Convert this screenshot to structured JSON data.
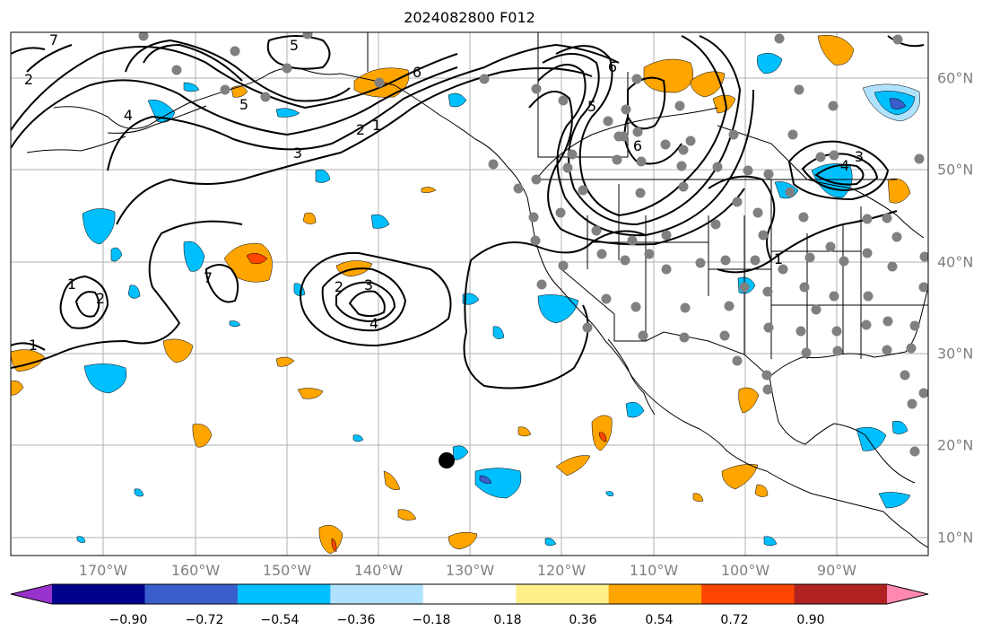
{
  "title": "2024082800 F012",
  "longitude_labels": [
    "170°W",
    "160°W",
    "150°W",
    "140°W",
    "130°W",
    "120°W",
    "110°W",
    "100°W",
    "90°W"
  ],
  "latitude_labels": [
    "60°N",
    "50°N",
    "40°N",
    "30°N",
    "20°N",
    "10°N"
  ],
  "contour_labels": [
    "1",
    "2",
    "3",
    "4",
    "5",
    "6",
    "7"
  ],
  "colorbar": {
    "tick_labels": [
      "−0.90",
      "−0.72",
      "−0.54",
      "−0.36",
      "−0.18",
      "0.18",
      "0.36",
      "0.54",
      "0.72",
      "0.90"
    ],
    "colors": [
      "#9932cc",
      "#00008b",
      "#3a5fcd",
      "#00bfff",
      "#b0e2ff",
      "#ffffff",
      "#fff08a",
      "#ffa500",
      "#ff4500",
      "#b22222",
      "#ff88b0"
    ]
  },
  "colors": {
    "grid": "#b0b0b0",
    "station_dot": "#808080",
    "contour": "#000000"
  }
}
